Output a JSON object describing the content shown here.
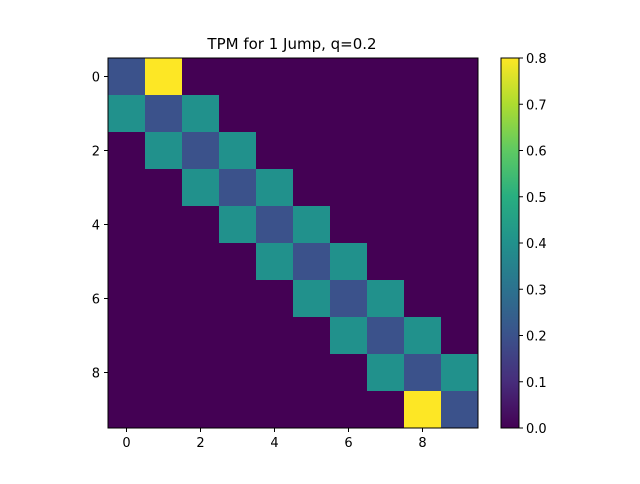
{
  "chart_data": {
    "type": "heatmap",
    "title": "TPM for 1 Jump, q=0.2",
    "xlabel": "",
    "ylabel": "",
    "rows": 10,
    "cols": 10,
    "x_ticks": [
      "0",
      "2",
      "4",
      "6",
      "8"
    ],
    "y_ticks": [
      "0",
      "2",
      "4",
      "6",
      "8"
    ],
    "colormap": "viridis",
    "colorbar": {
      "range": [
        0.0,
        0.8
      ],
      "ticks": [
        "0.0",
        "0.1",
        "0.2",
        "0.3",
        "0.4",
        "0.5",
        "0.6",
        "0.7",
        "0.8"
      ]
    },
    "grid": false,
    "matrix": [
      [
        0.2,
        0.8,
        0.0,
        0.0,
        0.0,
        0.0,
        0.0,
        0.0,
        0.0,
        0.0
      ],
      [
        0.4,
        0.2,
        0.4,
        0.0,
        0.0,
        0.0,
        0.0,
        0.0,
        0.0,
        0.0
      ],
      [
        0.0,
        0.4,
        0.2,
        0.4,
        0.0,
        0.0,
        0.0,
        0.0,
        0.0,
        0.0
      ],
      [
        0.0,
        0.0,
        0.4,
        0.2,
        0.4,
        0.0,
        0.0,
        0.0,
        0.0,
        0.0
      ],
      [
        0.0,
        0.0,
        0.0,
        0.4,
        0.2,
        0.4,
        0.0,
        0.0,
        0.0,
        0.0
      ],
      [
        0.0,
        0.0,
        0.0,
        0.0,
        0.4,
        0.2,
        0.4,
        0.0,
        0.0,
        0.0
      ],
      [
        0.0,
        0.0,
        0.0,
        0.0,
        0.0,
        0.4,
        0.2,
        0.4,
        0.0,
        0.0
      ],
      [
        0.0,
        0.0,
        0.0,
        0.0,
        0.0,
        0.0,
        0.4,
        0.2,
        0.4,
        0.0
      ],
      [
        0.0,
        0.0,
        0.0,
        0.0,
        0.0,
        0.0,
        0.0,
        0.4,
        0.2,
        0.4
      ],
      [
        0.0,
        0.0,
        0.0,
        0.0,
        0.0,
        0.0,
        0.0,
        0.0,
        0.8,
        0.2
      ]
    ]
  }
}
